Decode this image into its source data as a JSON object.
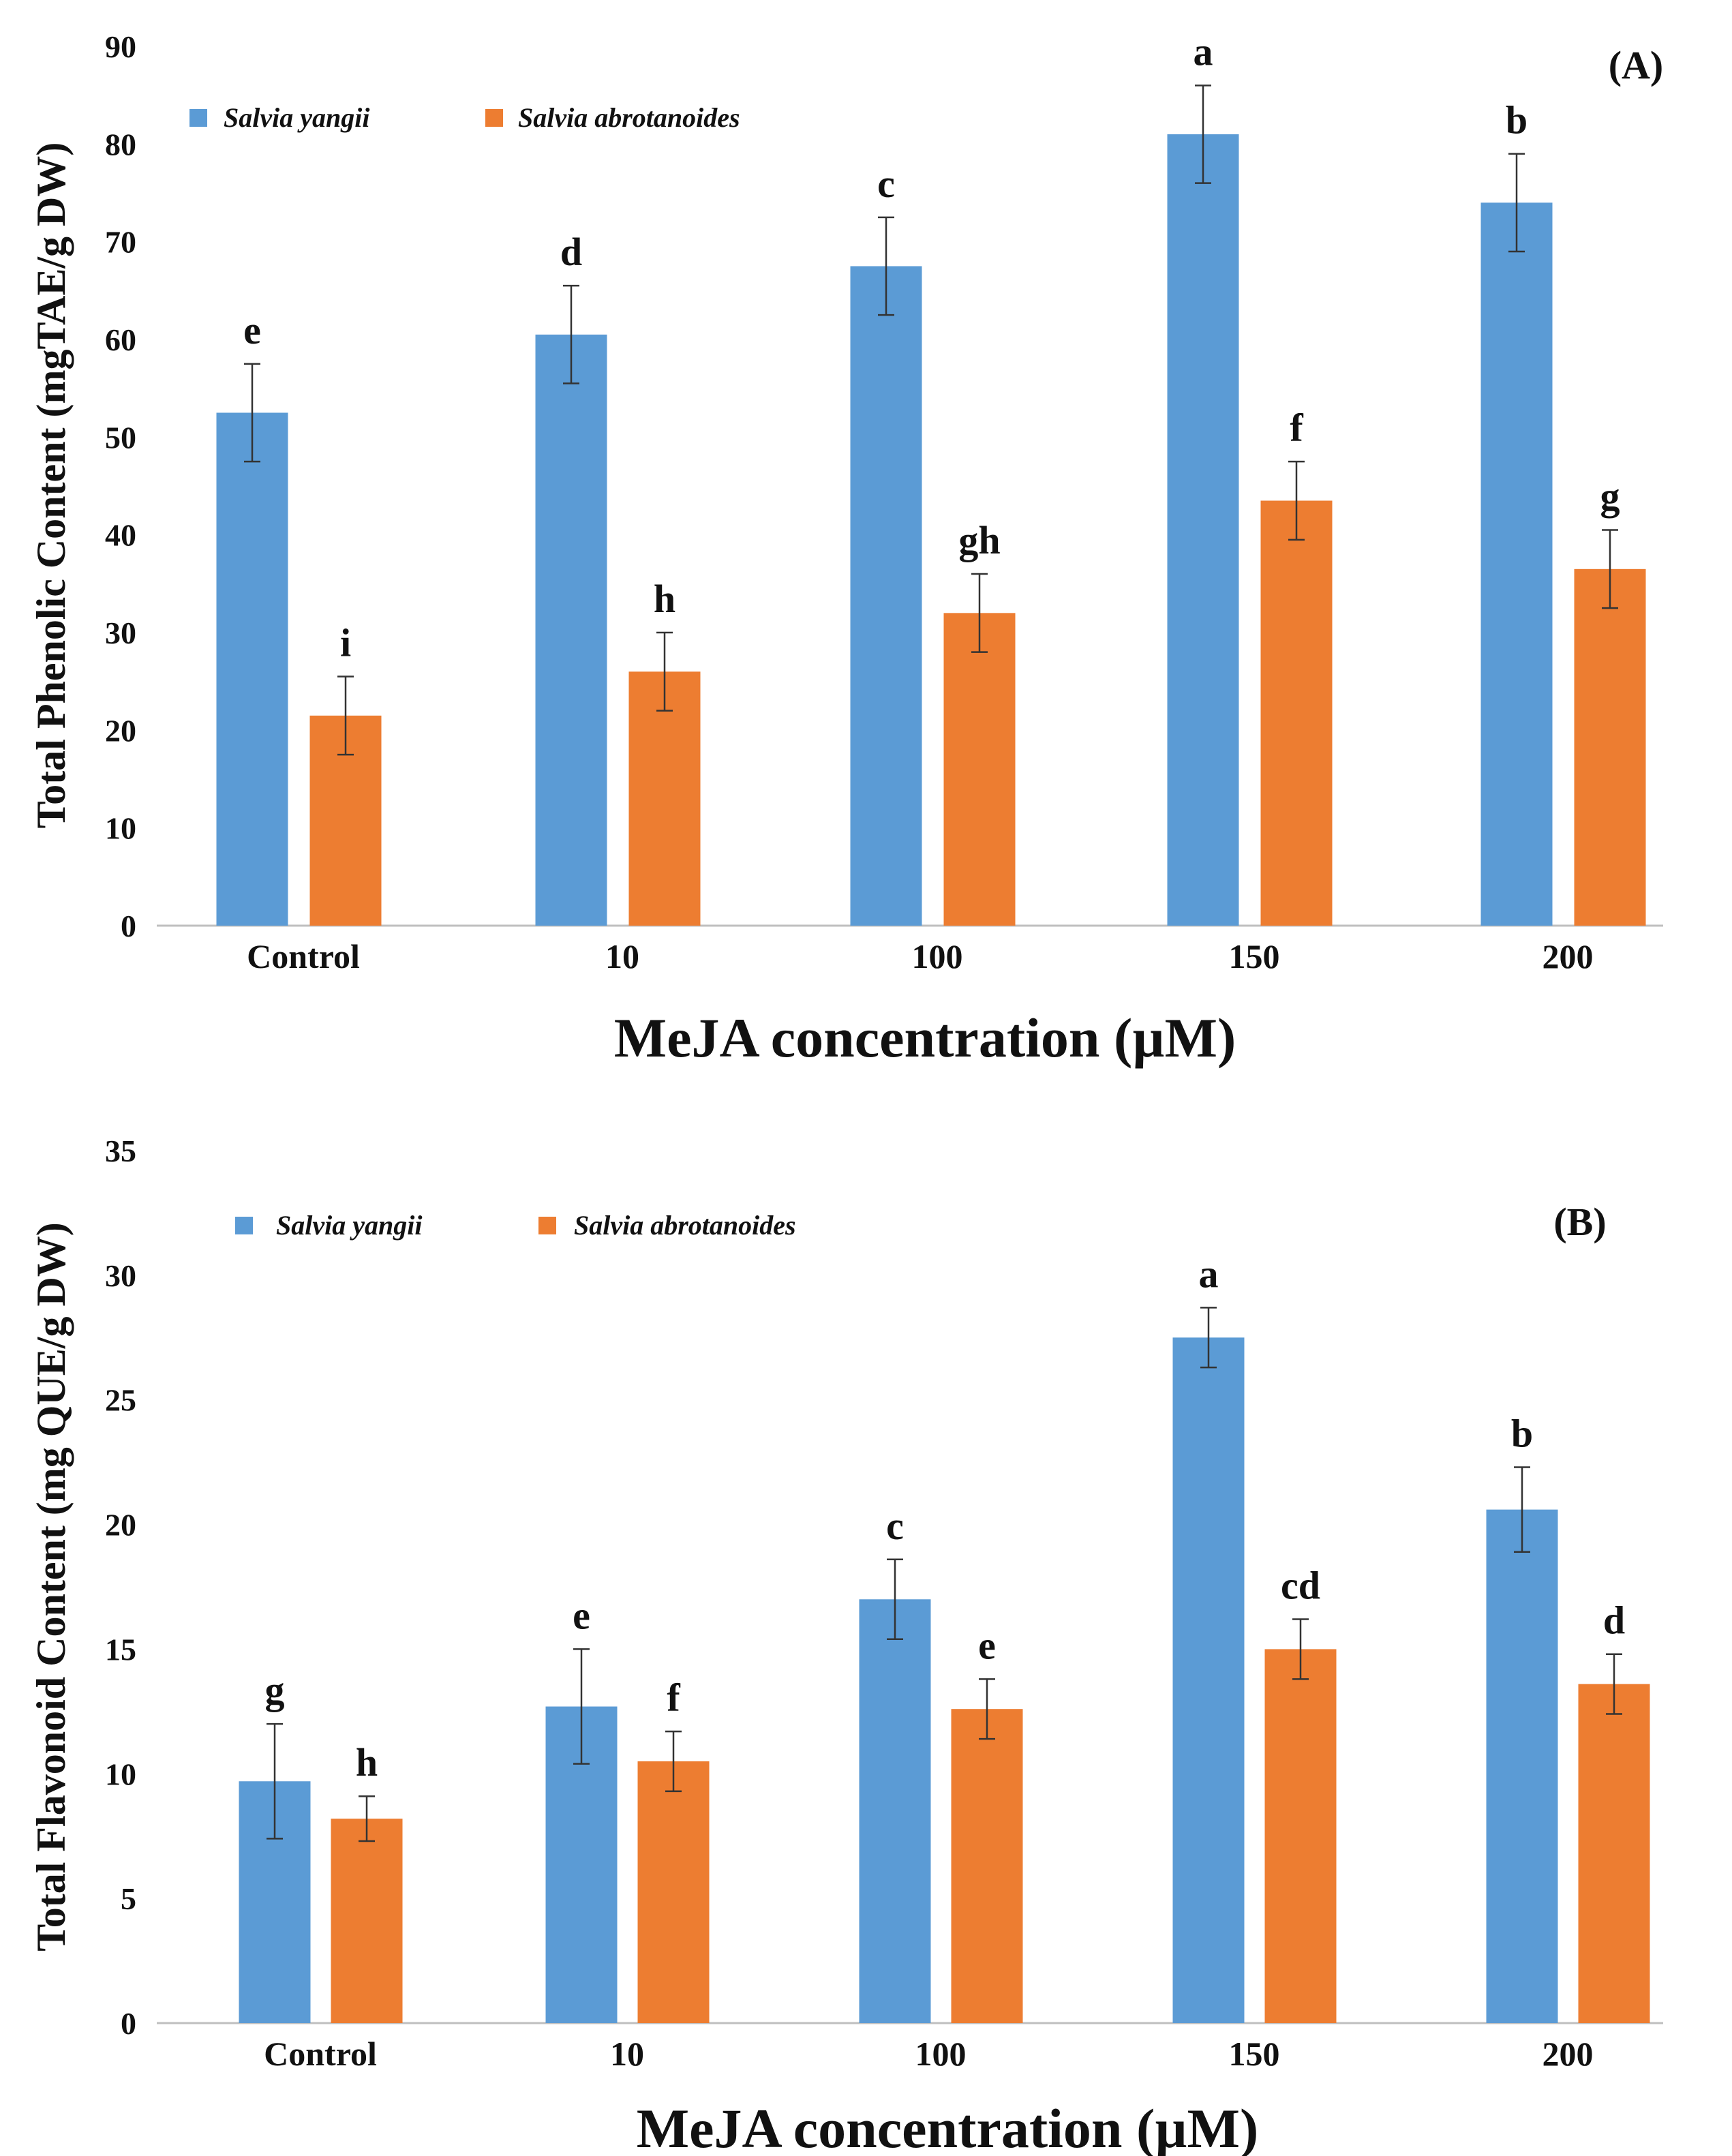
{
  "colors": {
    "series1": "#5b9bd5",
    "series2": "#ed7d31",
    "axis": "#bfbfbf",
    "error": "#333333"
  },
  "chart_data": [
    {
      "type": "bar",
      "panel_label": "(A)",
      "title": "",
      "xlabel": "MeJA concentration (µM)",
      "ylabel": "Total Phenolic Content (mgTAE/g DW)",
      "categories": [
        "Control",
        "10",
        "100",
        "150",
        "200"
      ],
      "ylim": [
        0,
        90
      ],
      "yticks": [
        "0",
        "10",
        "20",
        "30",
        "40",
        "50",
        "60",
        "70",
        "80",
        "90"
      ],
      "grid": false,
      "legend_position": "top-left",
      "series": [
        {
          "name": "Salvia yangii",
          "values": [
            52.5,
            60.5,
            67.5,
            81,
            74
          ],
          "errors": [
            5,
            5,
            5,
            5,
            5
          ],
          "letters": [
            "e",
            "d",
            "c",
            "a",
            "b"
          ]
        },
        {
          "name": "Salvia abrotanoides",
          "values": [
            21.5,
            26,
            32,
            43.5,
            36.5
          ],
          "errors": [
            4,
            4,
            4,
            4,
            4
          ],
          "letters": [
            "i",
            "h",
            "gh",
            "f",
            "g"
          ]
        }
      ]
    },
    {
      "type": "bar",
      "panel_label": "(B)",
      "title": "",
      "xlabel": "MeJA concentration (µM)",
      "ylabel": "Total Flavonoid  Content (mg QUE/g DW)",
      "categories": [
        "Control",
        "10",
        "100",
        "150",
        "200"
      ],
      "ylim": [
        0,
        35
      ],
      "yticks": [
        "0",
        "5",
        "10",
        "15",
        "20",
        "25",
        "30",
        "35"
      ],
      "grid": false,
      "legend_position": "top-left",
      "series": [
        {
          "name": "Salvia yangii",
          "values": [
            9.7,
            12.7,
            17,
            27.5,
            20.6
          ],
          "errors": [
            2.3,
            2.3,
            1.6,
            1.2,
            1.7
          ],
          "letters": [
            "g",
            "e",
            "c",
            "a",
            "b"
          ]
        },
        {
          "name": "Salvia abrotanoides",
          "values": [
            8.2,
            10.5,
            12.6,
            15,
            13.6
          ],
          "errors": [
            0.9,
            1.2,
            1.2,
            1.2,
            1.2
          ],
          "letters": [
            "h",
            "f",
            "e",
            "cd",
            "d"
          ]
        }
      ]
    }
  ]
}
